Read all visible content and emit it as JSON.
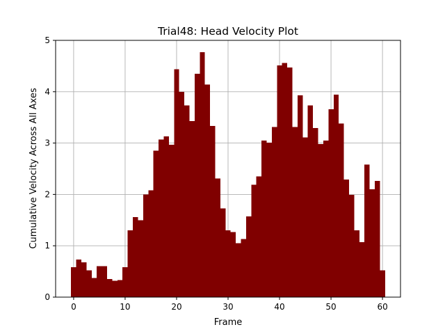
{
  "chart_data": {
    "type": "bar",
    "title": "Trial48: Head Velocity Plot",
    "xlabel": "Frame",
    "ylabel": "Cumulative Velocity Across All Axes",
    "xlim": [
      -3.5,
      63.5
    ],
    "ylim": [
      0,
      5
    ],
    "xticks": [
      0,
      10,
      20,
      30,
      40,
      50,
      60
    ],
    "yticks": [
      0,
      1,
      2,
      3,
      4,
      5
    ],
    "grid": true,
    "bar_color": "#800000",
    "x": [
      0,
      1,
      2,
      3,
      4,
      5,
      6,
      7,
      8,
      9,
      10,
      11,
      12,
      13,
      14,
      15,
      16,
      17,
      18,
      19,
      20,
      21,
      22,
      23,
      24,
      25,
      26,
      27,
      28,
      29,
      30,
      31,
      32,
      33,
      34,
      35,
      36,
      37,
      38,
      39,
      40,
      41,
      42,
      43,
      44,
      45,
      46,
      47,
      48,
      49,
      50,
      51,
      52,
      53,
      54,
      55,
      56,
      57,
      58,
      59,
      60
    ],
    "values": [
      0.58,
      0.73,
      0.68,
      0.52,
      0.37,
      0.6,
      0.6,
      0.35,
      0.32,
      0.33,
      0.58,
      1.3,
      1.56,
      1.5,
      2.0,
      2.08,
      2.85,
      3.07,
      3.13,
      2.97,
      4.44,
      4.0,
      3.73,
      3.43,
      4.35,
      4.77,
      4.14,
      3.33,
      2.31,
      1.73,
      1.3,
      1.27,
      1.05,
      1.13,
      1.57,
      2.19,
      2.35,
      3.05,
      3.01,
      3.31,
      4.51,
      4.56,
      4.47,
      3.31,
      3.93,
      3.11,
      3.73,
      3.29,
      2.98,
      3.05,
      3.66,
      3.94,
      3.38,
      2.29,
      1.99,
      1.3,
      1.07,
      2.58,
      2.1,
      2.26,
      0.52
    ]
  }
}
